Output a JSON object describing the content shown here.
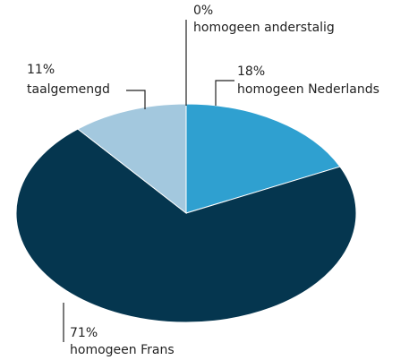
{
  "chart_data": {
    "type": "pie",
    "categories": [
      "homogeen anderstalig",
      "homogeen Nederlands",
      "homogeen Frans",
      "taalgemengd"
    ],
    "values": [
      0,
      18,
      71,
      11
    ],
    "value_labels": [
      "0%",
      "18%",
      "71%",
      "11%"
    ],
    "colors": [
      "#7fb9d8",
      "#2fa0d0",
      "#05364f",
      "#a3c8de"
    ]
  }
}
